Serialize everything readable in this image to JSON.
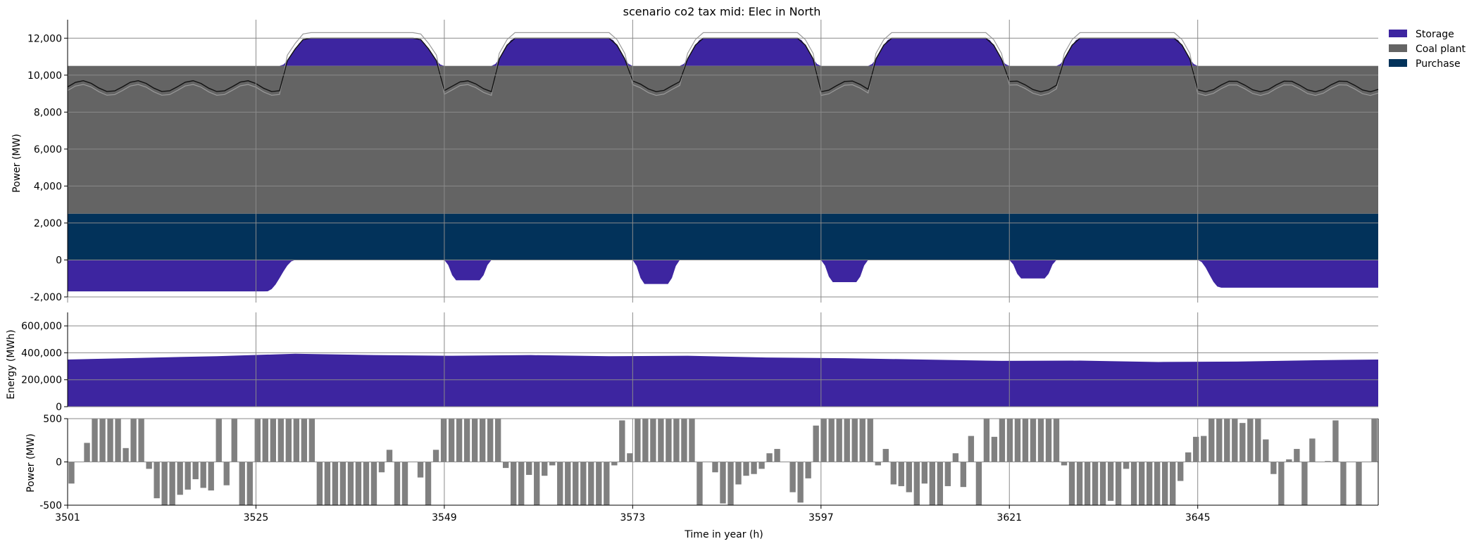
{
  "chart_data": {
    "type": "area",
    "title": "scenario co2 tax mid: Elec in North",
    "xlabel": "Time in year (h)",
    "x_ticks": [
      "3501",
      "3525",
      "3549",
      "3573",
      "3597",
      "3621",
      "3645"
    ],
    "x_range": [
      3501,
      3668
    ],
    "legend_position": "top-right",
    "grid": true,
    "colors": {
      "storage": "#3d25a0",
      "coal": "#646464",
      "purchase": "#02325a",
      "demand_line": "#111111",
      "net_line": "#9a9a9a",
      "grid": "#8a8a8a",
      "bar": "#808080"
    },
    "legend": [
      {
        "name": "Storage",
        "color": "#3d25a0"
      },
      {
        "name": "Coal plant",
        "color": "#646464"
      },
      {
        "name": "Purchase",
        "color": "#02325a"
      }
    ],
    "panels": [
      {
        "id": "power",
        "ylabel": "Power (MW)",
        "ylim": [
          -2000,
          13000
        ],
        "yticks": [
          -2000,
          0,
          2000,
          4000,
          6000,
          8000,
          10000,
          12000
        ],
        "ytick_labels": [
          "-2,000",
          "0",
          "2,000",
          "4,000",
          "6,000",
          "8,000",
          "10,000",
          "12,000"
        ],
        "purchase": 2500,
        "coal": 8000,
        "storage_peaks": [
          {
            "start": 3528,
            "end": 3549,
            "peak": 12000
          },
          {
            "start": 3555,
            "end": 3573,
            "peak": 12000
          },
          {
            "start": 3579,
            "end": 3597,
            "peak": 12000
          },
          {
            "start": 3603,
            "end": 3621,
            "peak": 12000
          },
          {
            "start": 3627,
            "end": 3645,
            "peak": 12000
          }
        ],
        "storage_troughs": [
          {
            "start": 3501,
            "end": 3530,
            "min": -1700
          },
          {
            "start": 3549,
            "end": 3555,
            "min": -1100
          },
          {
            "start": 3573,
            "end": 3579,
            "min": -1300
          },
          {
            "start": 3597,
            "end": 3603,
            "min": -1200
          },
          {
            "start": 3621,
            "end": 3627,
            "min": -1000
          },
          {
            "start": 3645,
            "end": 3668,
            "min": -1500
          }
        ]
      },
      {
        "id": "energy",
        "ylabel": "Energy (MWh)",
        "ylim": [
          0,
          700000
        ],
        "yticks": [
          0,
          200000,
          400000,
          600000
        ],
        "ytick_labels": [
          "0",
          "200,000",
          "400,000",
          "600,000"
        ],
        "x": [
          3501,
          3510,
          3520,
          3530,
          3540,
          3550,
          3560,
          3570,
          3580,
          3590,
          3600,
          3610,
          3620,
          3630,
          3640,
          3650,
          3660,
          3668
        ],
        "y": [
          350000,
          362000,
          375000,
          393000,
          383000,
          378000,
          383000,
          375000,
          378000,
          365000,
          360000,
          350000,
          340000,
          342000,
          332000,
          335000,
          345000,
          350000
        ]
      },
      {
        "id": "power_bars",
        "ylabel": "Power (MW)",
        "ylim": [
          -500,
          500
        ],
        "yticks": [
          -500,
          0,
          500
        ],
        "ytick_labels": [
          "-500",
          "0",
          "500"
        ],
        "values": [
          -250,
          0,
          220,
          500,
          500,
          500,
          500,
          160,
          500,
          500,
          -80,
          -420,
          -500,
          -500,
          -380,
          -320,
          -200,
          -300,
          -330,
          500,
          -270,
          500,
          -500,
          -500,
          500,
          500,
          500,
          500,
          500,
          500,
          500,
          500,
          -500,
          -500,
          -500,
          -500,
          -500,
          -500,
          -500,
          -500,
          -120,
          140,
          -500,
          -500,
          0,
          -180,
          -500,
          140,
          500,
          500,
          500,
          500,
          500,
          500,
          500,
          500,
          -70,
          -500,
          -500,
          -150,
          -500,
          -160,
          -40,
          -500,
          -500,
          -500,
          -500,
          -500,
          -500,
          -500,
          -40,
          480,
          100,
          500,
          500,
          500,
          500,
          500,
          500,
          500,
          500,
          -500,
          0,
          -120,
          -480,
          -500,
          -260,
          -160,
          -140,
          -80,
          100,
          150,
          0,
          -350,
          -470,
          -190,
          420,
          500,
          500,
          500,
          500,
          500,
          500,
          500,
          -40,
          150,
          -260,
          -280,
          -350,
          -500,
          -250,
          -500,
          -500,
          -280,
          100,
          -290,
          300,
          -500,
          500,
          290,
          500,
          500,
          500,
          500,
          500,
          500,
          500,
          500,
          -40,
          -500,
          -500,
          -500,
          -500,
          -500,
          -450,
          -500,
          -80,
          -500,
          -500,
          -500,
          -500,
          -500,
          -500,
          -220,
          110,
          290,
          300,
          500,
          500,
          500,
          500,
          450,
          500,
          500,
          260,
          -140,
          -500,
          30,
          150,
          -500,
          270,
          0,
          10,
          480,
          -500,
          0,
          -500,
          0,
          500
        ]
      }
    ]
  }
}
